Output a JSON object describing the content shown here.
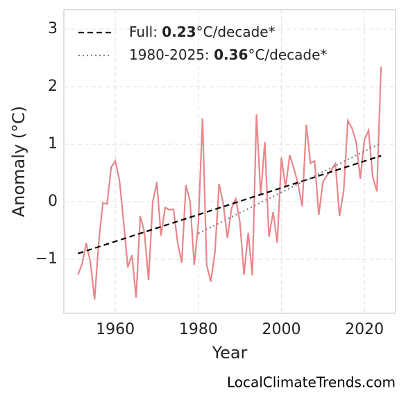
{
  "chart_data": {
    "type": "line",
    "xlabel": "Year",
    "ylabel": "Anomaly (°C)",
    "footer": "LocalClimateTrends.com",
    "xlim": [
      1947.6,
      2027.5
    ],
    "ylim": [
      -1.94,
      3.34
    ],
    "xticks": [
      1960,
      1980,
      2000,
      2020
    ],
    "yticks": [
      {
        "value": -1,
        "label": "−1"
      },
      0,
      1,
      2,
      3
    ],
    "grid": true,
    "legend": "upper left",
    "series": [
      {
        "name": [
          "Full: ",
          "0.23",
          "°C/decade*"
        ],
        "color": "#000000",
        "style": "dashed",
        "x": [
          1951,
          2024
        ],
        "values": [
          -0.9,
          0.8
        ]
      },
      {
        "name": [
          "1980-2025: ",
          "0.36",
          "°C/decade*"
        ],
        "color": "#808080",
        "style": "dotted",
        "x": [
          1980,
          2024
        ],
        "values": [
          -0.55,
          1.02
        ]
      },
      {
        "color": "#e8868a",
        "style": "solid",
        "x": [
          1951,
          1952,
          1953,
          1954,
          1955,
          1956,
          1957,
          1958,
          1959,
          1960,
          1961,
          1962,
          1963,
          1964,
          1965,
          1966,
          1967,
          1968,
          1969,
          1970,
          1971,
          1972,
          1973,
          1974,
          1975,
          1976,
          1977,
          1978,
          1979,
          1980,
          1981,
          1982,
          1983,
          1984,
          1985,
          1986,
          1987,
          1988,
          1989,
          1990,
          1991,
          1992,
          1993,
          1994,
          1995,
          1996,
          1997,
          1998,
          1999,
          2000,
          2001,
          2002,
          2003,
          2004,
          2005,
          2006,
          2007,
          2008,
          2009,
          2010,
          2011,
          2012,
          2013,
          2014,
          2015,
          2016,
          2017,
          2018,
          2019,
          2020,
          2021,
          2022,
          2023,
          2024
        ],
        "values": [
          -1.27,
          -1.08,
          -0.72,
          -1.05,
          -1.7,
          -0.71,
          -0.02,
          -0.04,
          0.6,
          0.71,
          0.37,
          -0.35,
          -1.14,
          -0.93,
          -1.67,
          -0.25,
          -0.53,
          -1.36,
          -0.01,
          0.34,
          -0.59,
          -0.1,
          -0.14,
          -0.13,
          -0.71,
          -1.06,
          0.29,
          0.01,
          -1.1,
          -0.37,
          1.45,
          -1.1,
          -1.39,
          -0.87,
          0.31,
          -0.04,
          -0.63,
          -0.11,
          0.05,
          -0.35,
          -1.27,
          -0.54,
          -1.28,
          1.52,
          0.11,
          1.04,
          -0.61,
          -0.18,
          -0.71,
          0.77,
          0.25,
          0.81,
          0.58,
          0.31,
          -0.08,
          1.34,
          0.67,
          0.71,
          -0.23,
          0.35,
          0.46,
          0.55,
          0.66,
          -0.25,
          0.19,
          1.41,
          1.28,
          1.04,
          0.4,
          1.08,
          1.24,
          0.43,
          0.18,
          2.35
        ]
      }
    ]
  }
}
